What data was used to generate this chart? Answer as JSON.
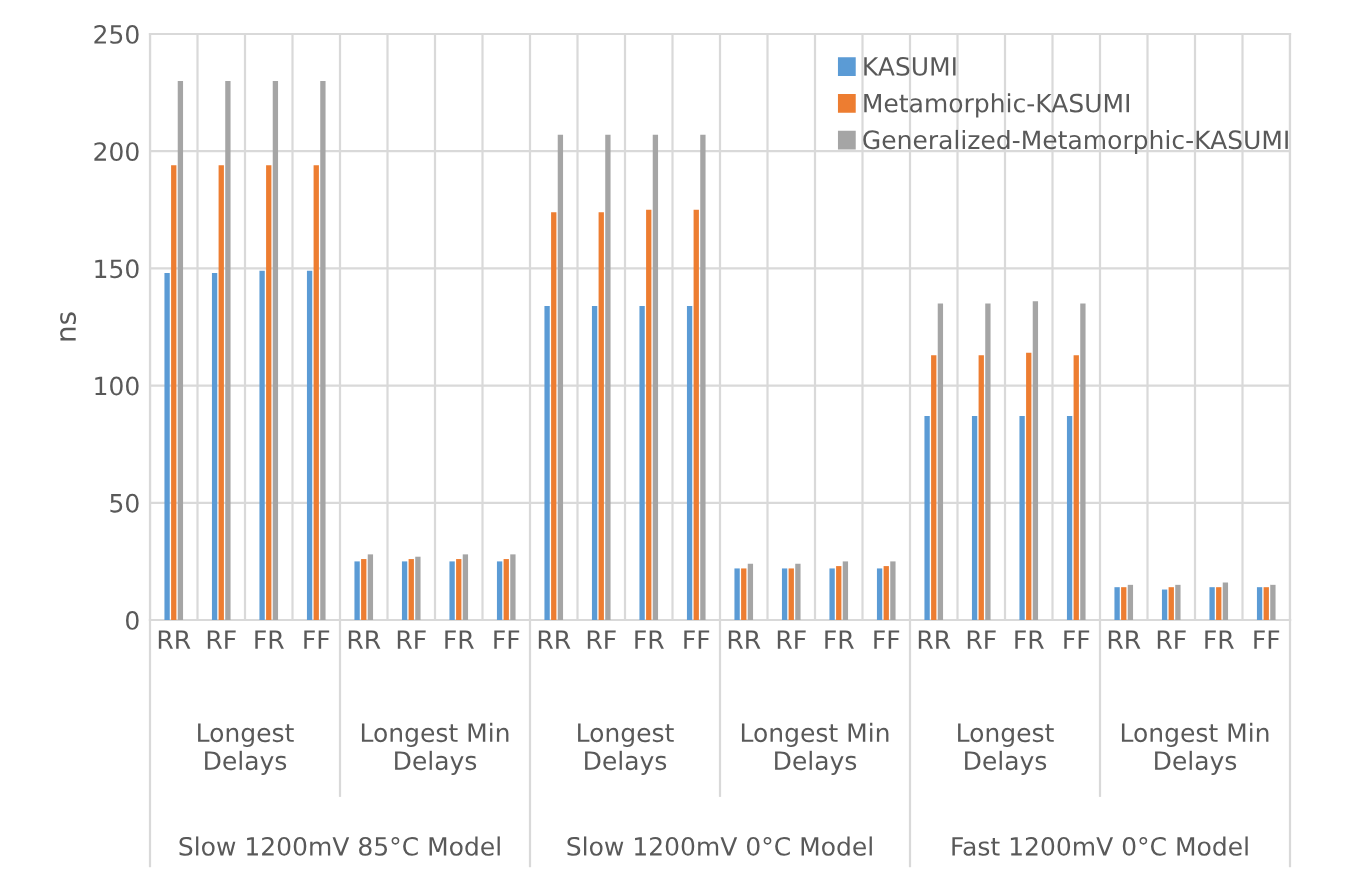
{
  "chart_data": {
    "type": "bar",
    "ylabel": "ns",
    "categories": [
      "RR",
      "RF",
      "FR",
      "FF",
      "RR",
      "RF",
      "FR",
      "FF",
      "RR",
      "RF",
      "FR",
      "FF",
      "RR",
      "RF",
      "FR",
      "FF",
      "RR",
      "RF",
      "FR",
      "FF",
      "RR",
      "RF",
      "FR",
      "FF"
    ],
    "series": [
      {
        "name": "KASUMI",
        "color": "#5b9bd5",
        "values": [
          148,
          148,
          149,
          149,
          25,
          25,
          25,
          25,
          134,
          134,
          134,
          134,
          22,
          22,
          22,
          22,
          87,
          87,
          87,
          87,
          14,
          13,
          14,
          14
        ]
      },
      {
        "name": "Metamorphic-KASUMI",
        "color": "#ed7d31",
        "values": [
          194,
          194,
          194,
          194,
          26,
          26,
          26,
          26,
          174,
          174,
          175,
          175,
          22,
          22,
          23,
          23,
          113,
          113,
          114,
          113,
          14,
          14,
          14,
          14
        ]
      },
      {
        "name": "Generalized-Metamorphic-KASUMI",
        "color": "#a5a5a5",
        "values": [
          230,
          230,
          230,
          230,
          28,
          27,
          28,
          28,
          207,
          207,
          207,
          207,
          24,
          24,
          25,
          25,
          135,
          135,
          136,
          135,
          15,
          15,
          16,
          15
        ]
      }
    ],
    "annotations": [
      "Longest Delays",
      "Longest Min Delays",
      "Longest Delays",
      "Longest Min Delays",
      "Longest Delays",
      "Longest Min Delays",
      "Slow 1200mV 85°C Model",
      "Slow 1200mV 0°C Model",
      "Fast 1200mV 0°C Model"
    ],
    "ylim": [
      0,
      250
    ],
    "yticks": [
      0,
      50,
      100,
      150,
      200,
      250
    ],
    "grid": true,
    "legend": "top right"
  }
}
